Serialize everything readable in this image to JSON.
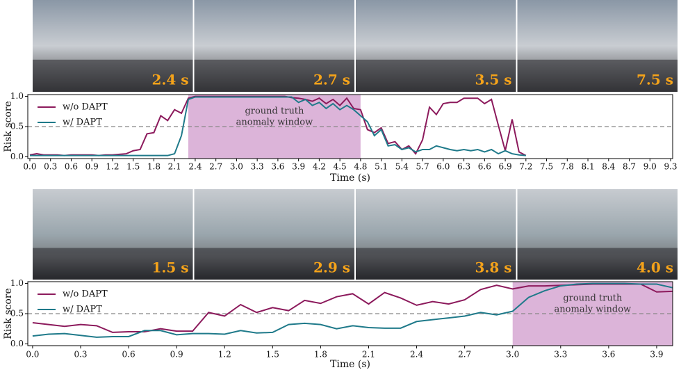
{
  "chart_data": [
    {
      "type": "line",
      "frames": [
        "2.4 s",
        "2.7 s",
        "3.5 s",
        "7.5 s"
      ],
      "xlabel": "Time (s)",
      "ylabel": "Risk score",
      "x": [
        0,
        0.1,
        0.2,
        0.3,
        0.4,
        0.5,
        0.6,
        0.7,
        0.8,
        0.9,
        1.0,
        1.1,
        1.2,
        1.3,
        1.4,
        1.5,
        1.6,
        1.7,
        1.8,
        1.9,
        2.0,
        2.1,
        2.2,
        2.3,
        2.4,
        2.5,
        2.6,
        2.7,
        2.8,
        2.9,
        3.0,
        3.1,
        3.2,
        3.3,
        3.4,
        3.5,
        3.6,
        3.7,
        3.8,
        3.9,
        4.0,
        4.1,
        4.2,
        4.3,
        4.4,
        4.5,
        4.6,
        4.7,
        4.8,
        4.9,
        5.0,
        5.1,
        5.2,
        5.3,
        5.4,
        5.5,
        5.6,
        5.7,
        5.8,
        5.9,
        6.0,
        6.1,
        6.2,
        6.3,
        6.4,
        6.5,
        6.6,
        6.7,
        6.8,
        6.9,
        7.0,
        7.1,
        7.2
      ],
      "series": [
        {
          "name": "w/o DAPT",
          "color": "#8c1a5c",
          "values": [
            0.03,
            0.05,
            0.03,
            0.03,
            0.03,
            0.02,
            0.03,
            0.03,
            0.03,
            0.03,
            0.02,
            0.03,
            0.03,
            0.04,
            0.05,
            0.1,
            0.12,
            0.38,
            0.4,
            0.68,
            0.6,
            0.78,
            0.72,
            0.97,
            1.0,
            1.0,
            1.0,
            1.0,
            1.0,
            1.0,
            1.0,
            1.0,
            1.0,
            1.0,
            1.0,
            1.0,
            1.0,
            1.0,
            0.98,
            0.97,
            0.95,
            0.92,
            0.97,
            0.88,
            0.95,
            0.85,
            0.97,
            0.8,
            0.78,
            0.45,
            0.4,
            0.48,
            0.22,
            0.25,
            0.12,
            0.18,
            0.05,
            0.28,
            0.82,
            0.7,
            0.88,
            0.9,
            0.9,
            0.97,
            0.97,
            0.97,
            0.88,
            0.95,
            0.52,
            0.1,
            0.62,
            0.08,
            0.02
          ]
        },
        {
          "name": "w/ DAPT",
          "color": "#1f7a8a",
          "values": [
            0.02,
            0.02,
            0.02,
            0.02,
            0.02,
            0.02,
            0.02,
            0.02,
            0.02,
            0.02,
            0.02,
            0.02,
            0.02,
            0.02,
            0.02,
            0.02,
            0.02,
            0.02,
            0.02,
            0.02,
            0.02,
            0.05,
            0.35,
            0.95,
            0.99,
            0.99,
            0.99,
            0.99,
            0.99,
            0.99,
            0.99,
            0.99,
            0.99,
            0.99,
            0.99,
            0.99,
            0.99,
            0.99,
            0.99,
            0.9,
            0.95,
            0.85,
            0.9,
            0.8,
            0.88,
            0.78,
            0.85,
            0.78,
            0.68,
            0.58,
            0.35,
            0.45,
            0.18,
            0.2,
            0.12,
            0.15,
            0.08,
            0.12,
            0.12,
            0.18,
            0.15,
            0.12,
            0.1,
            0.12,
            0.1,
            0.12,
            0.08,
            0.12,
            0.05,
            0.1,
            0.05,
            0.03,
            0.02
          ]
        }
      ],
      "window": [
        2.3,
        4.8
      ],
      "window_label": [
        "ground truth",
        "anomaly window"
      ],
      "threshold": 0.5,
      "xlim": [
        -0.03,
        9.33
      ],
      "ylim": [
        -0.03,
        1.03
      ],
      "xticks": [
        {
          "value": 0,
          "label": "0.0"
        },
        0.3,
        0.6,
        0.9,
        1.2,
        1.5,
        1.8,
        2.1,
        2.4,
        2.7,
        {
          "value": 3,
          "label": "3.0"
        },
        3.3,
        3.6,
        3.9,
        4.2,
        4.5,
        4.8,
        5.1,
        5.4,
        5.7,
        {
          "value": 6,
          "label": "6.0"
        },
        6.3,
        6.6,
        6.9,
        7.2,
        7.5,
        7.8,
        8.1,
        8.4,
        8.7,
        {
          "value": 9,
          "label": "9.0"
        },
        9.3
      ],
      "yticks": [
        {
          "value": 0,
          "label": "0.0"
        },
        0.5,
        {
          "value": 1,
          "label": "1.0"
        }
      ]
    },
    {
      "type": "line",
      "frames": [
        "1.5 s",
        "2.9 s",
        "3.8 s",
        "4.0 s"
      ],
      "xlabel": "Time (s)",
      "ylabel": "Risk score",
      "x": [
        0,
        0.1,
        0.2,
        0.3,
        0.4,
        0.5,
        0.6,
        0.7,
        0.8,
        0.9,
        1.0,
        1.1,
        1.2,
        1.3,
        1.4,
        1.5,
        1.6,
        1.7,
        1.8,
        1.9,
        2.0,
        2.1,
        2.2,
        2.3,
        2.4,
        2.5,
        2.6,
        2.7,
        2.8,
        2.9,
        3.0,
        3.1,
        3.2,
        3.3,
        3.4,
        3.5,
        3.6,
        3.7,
        3.8,
        3.9,
        4.0
      ],
      "series": [
        {
          "name": "w/o DAPT",
          "color": "#8c1a5c",
          "values": [
            0.35,
            0.32,
            0.29,
            0.32,
            0.3,
            0.19,
            0.2,
            0.2,
            0.25,
            0.21,
            0.21,
            0.52,
            0.46,
            0.65,
            0.52,
            0.6,
            0.55,
            0.72,
            0.67,
            0.78,
            0.83,
            0.66,
            0.85,
            0.76,
            0.64,
            0.7,
            0.66,
            0.73,
            0.9,
            0.97,
            0.91,
            0.96,
            0.96,
            0.97,
            0.98,
            0.99,
            0.99,
            0.99,
            0.99,
            0.86,
            0.87
          ]
        },
        {
          "name": "w/ DAPT",
          "color": "#1f7a8a",
          "values": [
            0.13,
            0.16,
            0.17,
            0.14,
            0.11,
            0.12,
            0.12,
            0.22,
            0.22,
            0.15,
            0.17,
            0.17,
            0.16,
            0.22,
            0.18,
            0.19,
            0.32,
            0.34,
            0.32,
            0.25,
            0.3,
            0.27,
            0.26,
            0.26,
            0.37,
            0.4,
            0.43,
            0.46,
            0.52,
            0.48,
            0.54,
            0.77,
            0.88,
            0.96,
            0.99,
            1.0,
            1.0,
            1.0,
            0.99,
            0.99,
            0.93
          ]
        }
      ],
      "window": [
        3.0,
        4.0
      ],
      "window_label": [
        "ground truth",
        "anomaly window"
      ],
      "threshold": 0.5,
      "xlim": [
        -0.03,
        4.0
      ],
      "ylim": [
        -0.03,
        1.03
      ],
      "xticks": [
        {
          "value": 0,
          "label": "0.0"
        },
        0.3,
        0.6,
        0.9,
        1.2,
        1.5,
        1.8,
        2.1,
        2.4,
        2.7,
        {
          "value": 3,
          "label": "3.0"
        },
        3.3,
        3.6,
        3.9
      ],
      "yticks": [
        {
          "value": 0,
          "label": "0.0"
        },
        0.5,
        {
          "value": 1,
          "label": "1.0"
        }
      ]
    }
  ]
}
